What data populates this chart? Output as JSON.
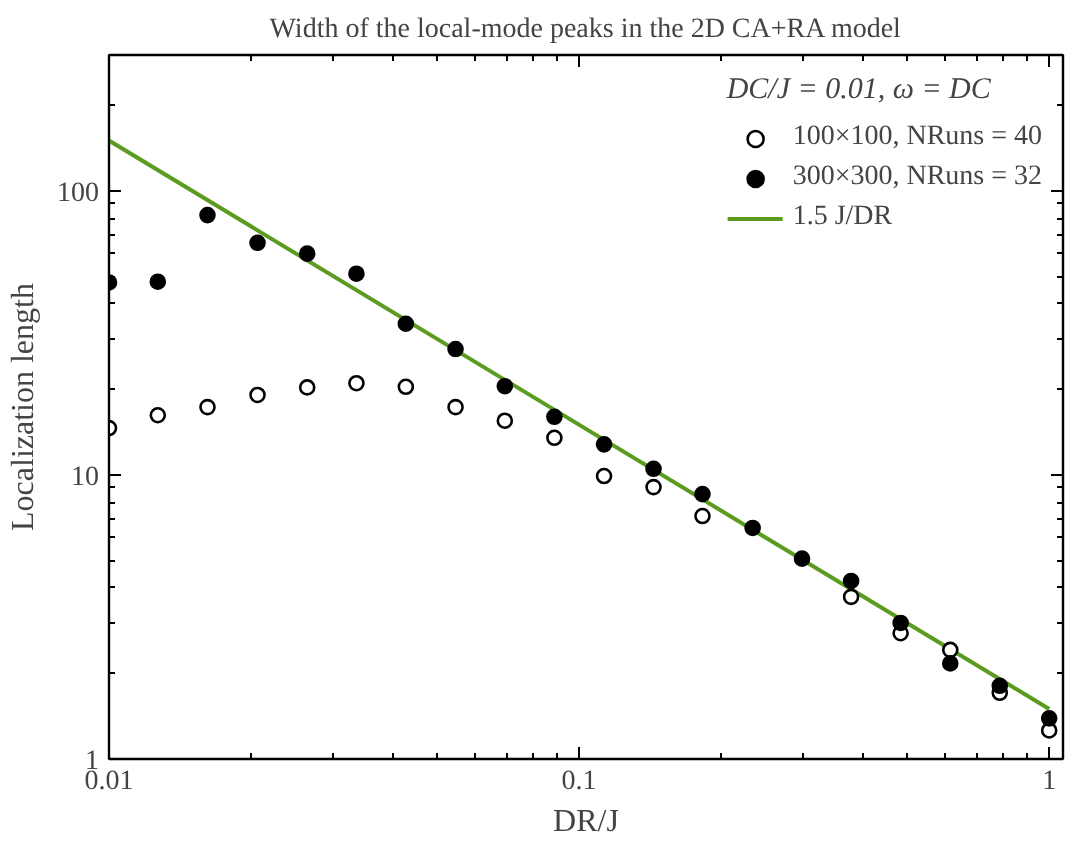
{
  "chart_data": {
    "type": "scatter",
    "title": "Width of the local-mode peaks in the 2D CA+RA model",
    "xlabel": "DR/J",
    "ylabel": "Localization length",
    "legend_title": "DC/J = 0.01, ω = DC",
    "x": [
      0.01,
      0.0127,
      0.0162,
      0.0207,
      0.0264,
      0.0336,
      0.0428,
      0.0546,
      0.0695,
      0.0886,
      0.113,
      0.144,
      0.183,
      0.234,
      0.298,
      0.379,
      0.483,
      0.616,
      0.785,
      1.0
    ],
    "series": [
      {
        "name": "100×100, NRuns = 40",
        "color": "#000000",
        "marker": "circle_open",
        "values": [
          14.6,
          16.2,
          17.3,
          19.1,
          20.3,
          21,
          20.4,
          17.3,
          15.5,
          13.5,
          9.9,
          9.05,
          7.16,
          null,
          null,
          3.72,
          2.77,
          2.42,
          1.71,
          1.26
        ]
      },
      {
        "name": "300×300, NRuns = 32",
        "color": "#000000",
        "marker": "circle",
        "values": [
          47.5,
          47.8,
          82,
          65.5,
          60,
          51,
          34,
          27.7,
          20.5,
          16.0,
          12.8,
          10.5,
          8.55,
          6.5,
          5.07,
          4.23,
          3.01,
          2.17,
          1.81,
          1.39
        ]
      },
      {
        "name": "1.5 J/DR",
        "type": "line",
        "color": "#5b9b1f",
        "line_style": "solid",
        "marker": "none",
        "x": [
          0.01,
          1.0
        ],
        "values": [
          150,
          1.5
        ]
      }
    ],
    "log": "xy",
    "xlim": [
      0.01,
      1.07
    ],
    "ylim": [
      1,
      300
    ],
    "xticks": [
      0.01,
      0.1,
      1
    ],
    "yticks": [
      1,
      10,
      100
    ],
    "grid": false,
    "legend": "top right"
  }
}
